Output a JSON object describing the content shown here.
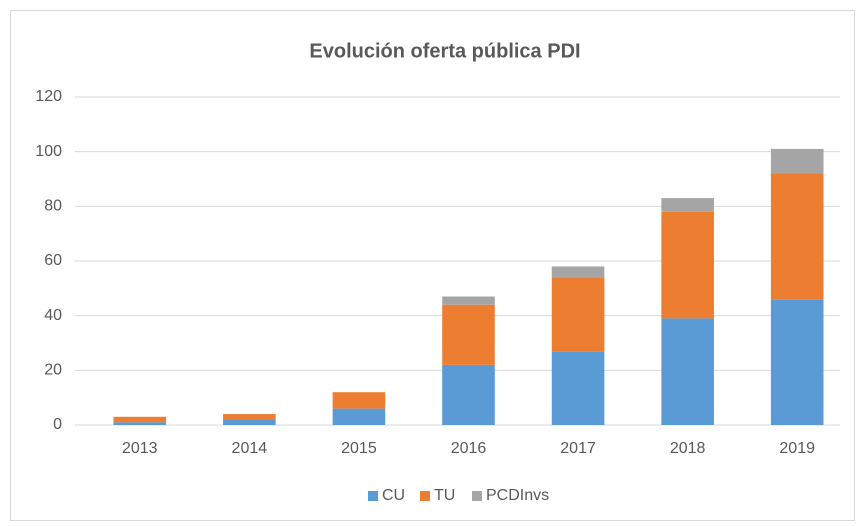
{
  "chart_data": {
    "type": "stacked_bar",
    "title": "Evolución oferta pública PDI",
    "categories": [
      "2013",
      "2014",
      "2015",
      "2016",
      "2017",
      "2018",
      "2019"
    ],
    "series": [
      {
        "name": "CU",
        "color": "#5b9bd5",
        "values": [
          1,
          2,
          6,
          22,
          27,
          39,
          46
        ]
      },
      {
        "name": "TU",
        "color": "#ed7d31",
        "values": [
          2,
          2,
          6,
          22,
          27,
          39,
          46
        ]
      },
      {
        "name": "PCDInvs",
        "color": "#a5a5a5",
        "values": [
          0,
          0,
          0,
          3,
          4,
          5,
          9
        ]
      }
    ],
    "ylim": [
      0,
      120
    ],
    "yticks": [
      0,
      20,
      40,
      60,
      80,
      100,
      120
    ],
    "grid": true,
    "legend": "bottom"
  }
}
